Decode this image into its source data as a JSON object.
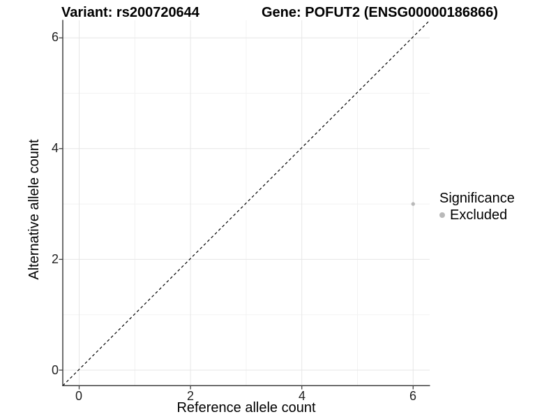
{
  "chart_data": {
    "type": "scatter",
    "title_left": "Variant: rs200720644",
    "title_right": "Gene: POFUT2 (ENSG00000186866)",
    "xlabel": "Reference allele count",
    "ylabel": "Alternative allele count",
    "x_ticks": [
      "0",
      "2",
      "4",
      "6"
    ],
    "y_ticks": [
      "0",
      "2",
      "4",
      "6"
    ],
    "xlim": [
      -0.3,
      6.3
    ],
    "ylim": [
      -0.3,
      6.3
    ],
    "grid": "major and minor gridlines, very light gray, on white panel",
    "series": [
      {
        "name": "Excluded",
        "points": [
          {
            "x": 6,
            "y": 3
          }
        ],
        "color": "#b9b9b9"
      }
    ],
    "reference_line": {
      "type": "identity y=x",
      "style": "dashed",
      "color": "#000000"
    },
    "legend": {
      "title": "Significance",
      "position": "right",
      "entries": [
        {
          "label": "Excluded",
          "color": "#b9b9b9"
        }
      ]
    }
  },
  "colors": {
    "background": "#ffffff",
    "axis_line": "#404040",
    "grid_major": "#e6e6e6",
    "grid_minor": "#f2f2f2",
    "point": "#b9b9b9",
    "dashed_line": "#000000"
  }
}
